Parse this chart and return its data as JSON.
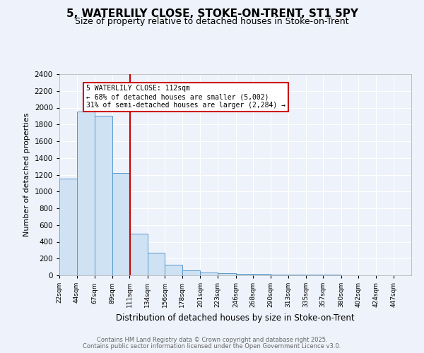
{
  "title_line1": "5, WATERLILY CLOSE, STOKE-ON-TRENT, ST1 5PY",
  "title_line2": "Size of property relative to detached houses in Stoke-on-Trent",
  "xlabel": "Distribution of detached houses by size in Stoke-on-Trent",
  "ylabel": "Number of detached properties",
  "footer_line1": "Contains HM Land Registry data © Crown copyright and database right 2025.",
  "footer_line2": "Contains public sector information licensed under the Open Government Licence v3.0.",
  "bar_edges": [
    22,
    44,
    67,
    89,
    111,
    134,
    156,
    178,
    201,
    223,
    246,
    268,
    290,
    313,
    335,
    357,
    380,
    402,
    424,
    447,
    469
  ],
  "bar_heights": [
    1150,
    1950,
    1900,
    1220,
    500,
    270,
    130,
    60,
    35,
    25,
    20,
    15,
    10,
    8,
    6,
    5,
    4,
    3,
    2,
    1
  ],
  "bar_fill": "#cfe2f3",
  "bar_edge": "#5599cc",
  "property_size": 112,
  "vline_color": "#cc0000",
  "annotation_text": "5 WATERLILY CLOSE: 112sqm\n← 68% of detached houses are smaller (5,002)\n31% of semi-detached houses are larger (2,284) →",
  "annotation_box_color": "#cc0000",
  "ylim": [
    0,
    2400
  ],
  "yticks": [
    0,
    200,
    400,
    600,
    800,
    1000,
    1200,
    1400,
    1600,
    1800,
    2000,
    2200,
    2400
  ],
  "bg_color": "#eef2fa",
  "grid_color": "#ffffff",
  "title_fontsize": 11,
  "subtitle_fontsize": 9
}
